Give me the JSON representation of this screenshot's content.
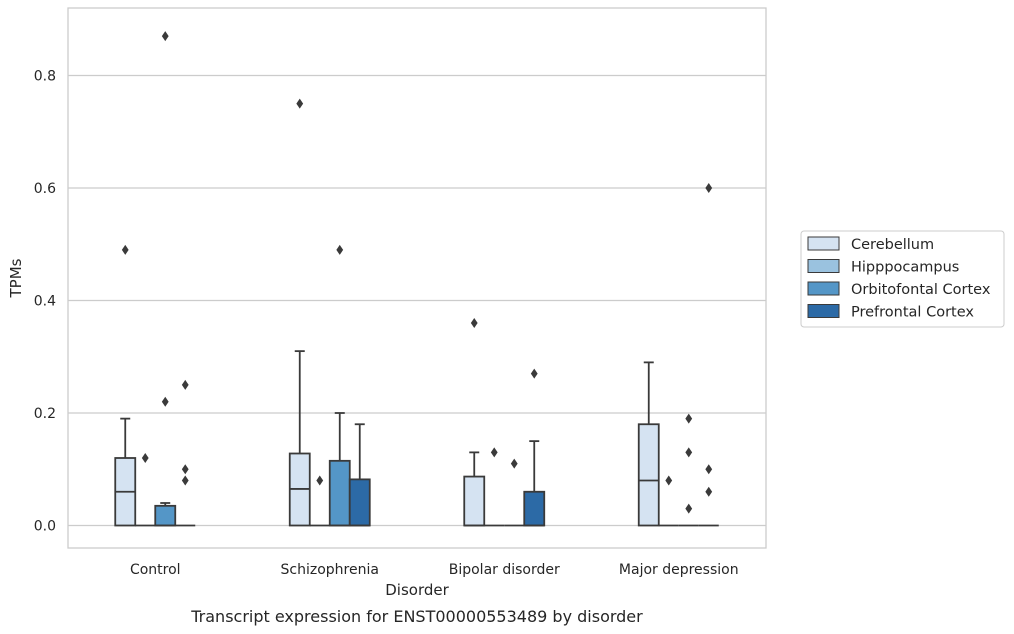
{
  "caption": "Transcript expression for ENST00000553489 by disorder",
  "chart_data": {
    "type": "box",
    "title": "",
    "xlabel": "Disorder",
    "ylabel": "TPMs",
    "ylim": [
      -0.04,
      0.92
    ],
    "yticks": [
      0.0,
      0.2,
      0.4,
      0.6,
      0.8
    ],
    "ytick_labels": [
      "0.0",
      "0.2",
      "0.4",
      "0.6",
      "0.8"
    ],
    "grid": "horizontal",
    "legend_position": "right",
    "categories": [
      "Control",
      "Schizophrenia",
      "Bipolar disorder",
      "Major depression"
    ],
    "series": [
      {
        "name": "Cerebellum",
        "color": "#d5e3f2",
        "boxes": [
          {
            "q1": 0.0,
            "median": 0.06,
            "q3": 0.12,
            "whislo": 0.0,
            "whishi": 0.19,
            "fliers": [
              0.49
            ]
          },
          {
            "q1": 0.0,
            "median": 0.065,
            "q3": 0.128,
            "whislo": 0.0,
            "whishi": 0.31,
            "fliers": [
              0.75
            ]
          },
          {
            "q1": 0.0,
            "median": 0.0,
            "q3": 0.087,
            "whislo": 0.0,
            "whishi": 0.13,
            "fliers": [
              0.36
            ]
          },
          {
            "q1": 0.0,
            "median": 0.08,
            "q3": 0.18,
            "whislo": 0.0,
            "whishi": 0.29,
            "fliers": []
          }
        ]
      },
      {
        "name": "Hipppocampus",
        "color": "#9ac2df",
        "boxes": [
          {
            "q1": 0.0,
            "median": 0.0,
            "q3": 0.0,
            "whislo": 0.0,
            "whishi": 0.0,
            "fliers": [
              0.12
            ]
          },
          {
            "q1": 0.0,
            "median": 0.0,
            "q3": 0.0,
            "whislo": 0.0,
            "whishi": 0.0,
            "fliers": [
              0.08
            ]
          },
          {
            "q1": 0.0,
            "median": 0.0,
            "q3": 0.0,
            "whislo": 0.0,
            "whishi": 0.0,
            "fliers": [
              0.13
            ]
          },
          {
            "q1": 0.0,
            "median": 0.0,
            "q3": 0.0,
            "whislo": 0.0,
            "whishi": 0.0,
            "fliers": [
              0.08
            ]
          }
        ]
      },
      {
        "name": "Orbitofontal Cortex",
        "color": "#5496c7",
        "boxes": [
          {
            "q1": 0.0,
            "median": 0.0,
            "q3": 0.035,
            "whislo": 0.0,
            "whishi": 0.04,
            "fliers": [
              0.87,
              0.22
            ]
          },
          {
            "q1": 0.0,
            "median": 0.0,
            "q3": 0.115,
            "whislo": 0.0,
            "whishi": 0.2,
            "fliers": [
              0.49
            ]
          },
          {
            "q1": 0.0,
            "median": 0.0,
            "q3": 0.0,
            "whislo": 0.0,
            "whishi": 0.0,
            "fliers": [
              0.11
            ]
          },
          {
            "q1": 0.0,
            "median": 0.0,
            "q3": 0.0,
            "whislo": 0.0,
            "whishi": 0.0,
            "fliers": [
              0.19,
              0.13,
              0.03
            ]
          }
        ]
      },
      {
        "name": "Prefrontal Cortex",
        "color": "#2c6aa6",
        "boxes": [
          {
            "q1": 0.0,
            "median": 0.0,
            "q3": 0.0,
            "whislo": 0.0,
            "whishi": 0.0,
            "fliers": [
              0.25,
              0.1,
              0.08
            ]
          },
          {
            "q1": 0.0,
            "median": 0.0,
            "q3": 0.082,
            "whislo": 0.0,
            "whishi": 0.18,
            "fliers": []
          },
          {
            "q1": 0.0,
            "median": 0.0,
            "q3": 0.06,
            "whislo": 0.0,
            "whishi": 0.15,
            "fliers": [
              0.27
            ]
          },
          {
            "q1": 0.0,
            "median": 0.0,
            "q3": 0.0,
            "whislo": 0.0,
            "whishi": 0.0,
            "fliers": [
              0.6,
              0.1,
              0.06
            ]
          }
        ]
      }
    ]
  }
}
